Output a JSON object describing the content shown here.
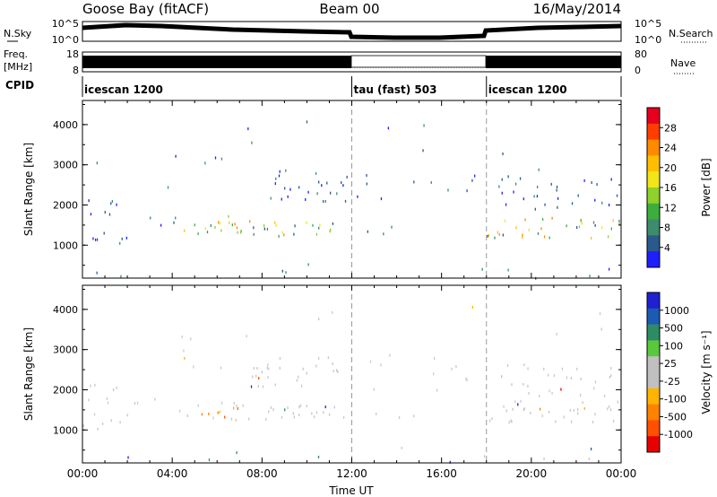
{
  "header": {
    "station": "Goose Bay (fitACF)",
    "beam": "Beam 00",
    "date": "16/May/2014"
  },
  "params": {
    "nsky_label": "N.Sky",
    "nsky_ticks": [
      "10^5",
      "10^0"
    ],
    "nsearch_label": "N.Search",
    "nsearch_ticks": [
      "10^5",
      "10^0"
    ],
    "freq_label_line1": "Freq.",
    "freq_label_line2": "[MHz]",
    "freq_ticks": [
      "18",
      "8"
    ],
    "nave_label": "Nave",
    "nave_ticks": [
      "80",
      "0"
    ],
    "cpid_label": "CPID"
  },
  "cpid_segments": [
    {
      "start_hour": 0,
      "end_hour": 12,
      "label": "icescan 1200"
    },
    {
      "start_hour": 12,
      "end_hour": 18,
      "label": "tau (fast) 503"
    },
    {
      "start_hour": 18,
      "end_hour": 24,
      "label": "icescan 1200"
    }
  ],
  "chart_data": [
    {
      "type": "heatmap",
      "name": "power",
      "ylabel": "Slant Range [km]",
      "ylim": [
        180,
        4600
      ],
      "y_ticks": [
        "4000",
        "3000",
        "2000",
        "1000"
      ],
      "x_ticks": [
        "00:00",
        "04:00",
        "08:00",
        "12:00",
        "16:00",
        "20:00",
        "00:00"
      ],
      "colorbar": {
        "label": "Power [dB]",
        "ticks": [
          "28",
          "24",
          "20",
          "16",
          "12",
          "8",
          "4"
        ],
        "colors": [
          "#e6001e",
          "#ff3d00",
          "#ff8a00",
          "#ffbf00",
          "#f2e51a",
          "#8fd02a",
          "#3cae3c",
          "#3c8c6e",
          "#2a5a8c",
          "#1e1eff"
        ]
      }
    },
    {
      "type": "heatmap",
      "name": "velocity",
      "ylabel": "Slant Range [km]",
      "ylim": [
        180,
        4600
      ],
      "y_ticks": [
        "4000",
        "3000",
        "2000",
        "1000"
      ],
      "x_ticks": [
        "00:00",
        "04:00",
        "08:00",
        "12:00",
        "16:00",
        "20:00",
        "00:00"
      ],
      "xlabel": "Time UT",
      "colorbar": {
        "label": "Velocity [m s⁻¹]",
        "ticks": [
          "1000",
          "500",
          "100",
          "25",
          "-25",
          "-100",
          "-500",
          "-1000"
        ],
        "colors": [
          "#2020d0",
          "#1c5ab4",
          "#2e8c64",
          "#5ac83c",
          "#c0c0c0",
          "#c0c0c0",
          "#ffb400",
          "#ff8200",
          "#ff5000",
          "#e60000"
        ]
      }
    }
  ]
}
